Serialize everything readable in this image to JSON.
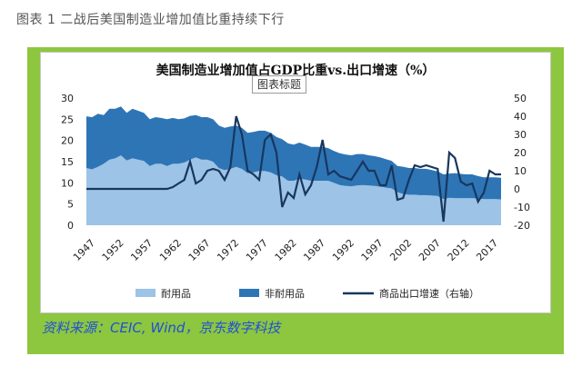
{
  "caption": "图表 1 二战后美国制造业增加值比重持续下行",
  "source": "资料来源：CEIC, Wind，京东数字科技",
  "colors": {
    "durable": "#9dc3e6",
    "nondurable": "#2e75b6",
    "exports": "#17375e",
    "frame": "#8dc63f",
    "source_text": "#1f4fd8"
  },
  "chart_data": {
    "type": "area",
    "title": "美国制造业增加值占GDP比重vs.出口增速（%）",
    "title_placeholder": "图表标题",
    "y_left": {
      "min": 0,
      "max": 30,
      "ticks": [
        0,
        5,
        10,
        15,
        20,
        25,
        30
      ]
    },
    "y_right": {
      "min": -20,
      "max": 50,
      "ticks": [
        -20,
        -10,
        0,
        10,
        20,
        30,
        40,
        50
      ]
    },
    "x_tick_labels": [
      "1947",
      "1952",
      "1957",
      "1962",
      "1967",
      "1972",
      "1977",
      "1982",
      "1987",
      "1992",
      "1997",
      "2002",
      "2007",
      "2012",
      "2017"
    ],
    "years": [
      1947,
      1948,
      1949,
      1950,
      1951,
      1952,
      1953,
      1954,
      1955,
      1956,
      1957,
      1958,
      1959,
      1960,
      1961,
      1962,
      1963,
      1964,
      1965,
      1966,
      1967,
      1968,
      1969,
      1970,
      1971,
      1972,
      1973,
      1974,
      1975,
      1976,
      1977,
      1978,
      1979,
      1980,
      1981,
      1982,
      1983,
      1984,
      1985,
      1986,
      1987,
      1988,
      1989,
      1990,
      1991,
      1992,
      1993,
      1994,
      1995,
      1996,
      1997,
      1998,
      1999,
      2000,
      2001,
      2002,
      2003,
      2004,
      2005,
      2006,
      2007,
      2008,
      2009,
      2010,
      2011,
      2012,
      2013,
      2014,
      2015,
      2016,
      2017,
      2018,
      2019
    ],
    "series": [
      {
        "name": "耐用品",
        "kind": "area",
        "axis": "left",
        "values": [
          13.5,
          13.2,
          13.8,
          14.5,
          15.5,
          15.8,
          16.5,
          15.3,
          15.8,
          15.5,
          15.2,
          14.0,
          14.5,
          14.5,
          14.0,
          14.5,
          14.5,
          14.8,
          15.5,
          16.0,
          15.5,
          15.5,
          15.0,
          13.5,
          13.0,
          13.3,
          13.8,
          13.3,
          12.3,
          12.5,
          12.8,
          12.8,
          12.5,
          11.8,
          11.5,
          10.5,
          10.5,
          11.0,
          10.8,
          10.5,
          10.5,
          10.5,
          10.5,
          10.0,
          9.5,
          9.3,
          9.2,
          9.4,
          9.5,
          9.4,
          9.3,
          9.1,
          8.9,
          8.7,
          7.8,
          7.4,
          7.2,
          7.2,
          7.1,
          7.1,
          7.0,
          6.9,
          6.2,
          6.5,
          6.4,
          6.4,
          6.4,
          6.4,
          6.3,
          6.2,
          6.2,
          6.2,
          6.1
        ]
      },
      {
        "name": "非耐用品",
        "kind": "area",
        "axis": "left",
        "values": [
          25.7,
          25.5,
          26.3,
          26.0,
          27.5,
          27.5,
          28.0,
          26.5,
          27.5,
          27.0,
          26.5,
          25.0,
          25.5,
          25.3,
          25.0,
          25.3,
          25.0,
          25.2,
          25.8,
          26.0,
          25.5,
          25.5,
          25.0,
          23.5,
          23.0,
          23.3,
          23.5,
          23.0,
          21.8,
          22.0,
          22.3,
          22.3,
          21.8,
          20.8,
          20.3,
          19.3,
          19.0,
          19.5,
          19.0,
          18.5,
          18.5,
          18.5,
          18.2,
          17.5,
          17.0,
          16.7,
          16.5,
          16.8,
          16.8,
          16.5,
          16.3,
          16.0,
          15.6,
          15.2,
          14.0,
          13.8,
          13.5,
          13.5,
          13.3,
          13.3,
          13.0,
          12.7,
          12.0,
          12.2,
          12.3,
          12.1,
          12.0,
          12.0,
          11.6,
          11.3,
          11.3,
          11.3,
          11.2
        ]
      },
      {
        "name": "商品出口增速（右轴）",
        "kind": "line",
        "axis": "right",
        "values": [
          0,
          0,
          0,
          0,
          0,
          0,
          0,
          0,
          0,
          0,
          0,
          0,
          0,
          0,
          0,
          1,
          3,
          5,
          15,
          3,
          5,
          10,
          11,
          10,
          5,
          12,
          40,
          30,
          10,
          8,
          5,
          27,
          30,
          20,
          -10,
          -2,
          -5,
          8,
          -3,
          2,
          12,
          27,
          8,
          10,
          7,
          6,
          5,
          10,
          15,
          10,
          10,
          2,
          2,
          13,
          -6,
          -5,
          5,
          13,
          12,
          13,
          12,
          11,
          -18,
          20,
          17,
          4,
          2,
          3,
          -7,
          -2,
          10,
          8,
          8
        ]
      }
    ],
    "legend_position": "bottom"
  }
}
